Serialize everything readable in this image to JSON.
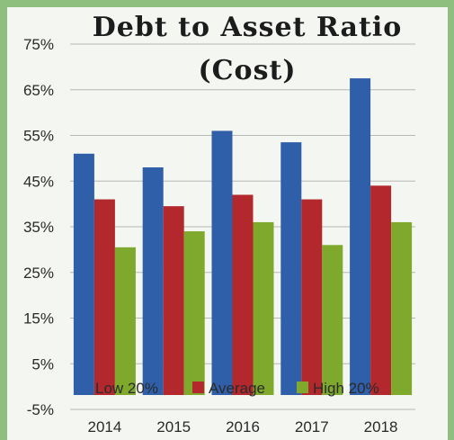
{
  "chart_data": {
    "type": "bar",
    "title": "Debt to Asset Ratio",
    "subtitle": "(Cost)",
    "categories": [
      "2014",
      "2015",
      "2016",
      "2017",
      "2018"
    ],
    "series": [
      {
        "name": "Low 20%",
        "color": "#2f5fa8",
        "values": [
          51,
          48,
          56,
          53.5,
          67.5
        ]
      },
      {
        "name": "Average",
        "color": "#b3282d",
        "values": [
          41,
          39.5,
          42,
          41,
          44
        ]
      },
      {
        "name": "High 20%",
        "color": "#7fa92c",
        "values": [
          30.5,
          34,
          36,
          31,
          36
        ]
      }
    ],
    "ylim": [
      -5,
      75
    ],
    "yticks": [
      "75%",
      "65%",
      "55%",
      "45%",
      "35%",
      "25%",
      "15%",
      "5%",
      "-5%"
    ],
    "ytick_values": [
      75,
      65,
      55,
      45,
      35,
      25,
      15,
      5,
      -5
    ],
    "grid": true,
    "legend_position": "bottom"
  }
}
